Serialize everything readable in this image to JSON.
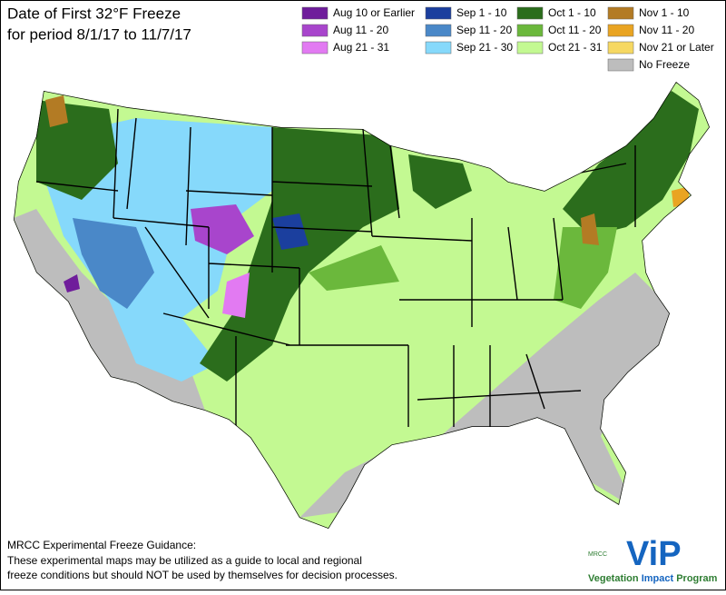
{
  "title": [
    "Date of First 32°F Freeze",
    "for period 8/1/17 to 11/7/17"
  ],
  "legend": [
    {
      "label": "Aug 10 or Earlier",
      "color": "#6f1d9b"
    },
    {
      "label": "Aug 11 - 20",
      "color": "#a845cc"
    },
    {
      "label": "Aug 21 - 31",
      "color": "#e27af2"
    },
    {
      "label": "Sep 1 - 10",
      "color": "#1b3f9e"
    },
    {
      "label": "Sep 11 - 20",
      "color": "#4a88c8"
    },
    {
      "label": "Sep 21 - 30",
      "color": "#86d9fb"
    },
    {
      "label": "Oct 1 - 10",
      "color": "#2b6d1c"
    },
    {
      "label": "Oct 11 - 20",
      "color": "#6bb83c"
    },
    {
      "label": "Oct 21 - 31",
      "color": "#c3f992"
    },
    {
      "label": "Nov 1 - 10",
      "color": "#b37b24"
    },
    {
      "label": "Nov 11 - 20",
      "color": "#e9a422"
    },
    {
      "label": "Nov 21 or Later",
      "color": "#f6d862"
    },
    {
      "label": "No Freeze",
      "color": "#bdbdbd"
    }
  ],
  "footer": [
    "MRCC Experimental Freeze Guidance:",
    "These experimental maps may be utilized as a guide to local and regional",
    "freeze conditions but should NOT be used by themselves for decision processes."
  ],
  "logo": {
    "org": "MRCC",
    "mark": "ViP",
    "words": [
      "Vegetation",
      "Impact",
      "Program"
    ]
  }
}
